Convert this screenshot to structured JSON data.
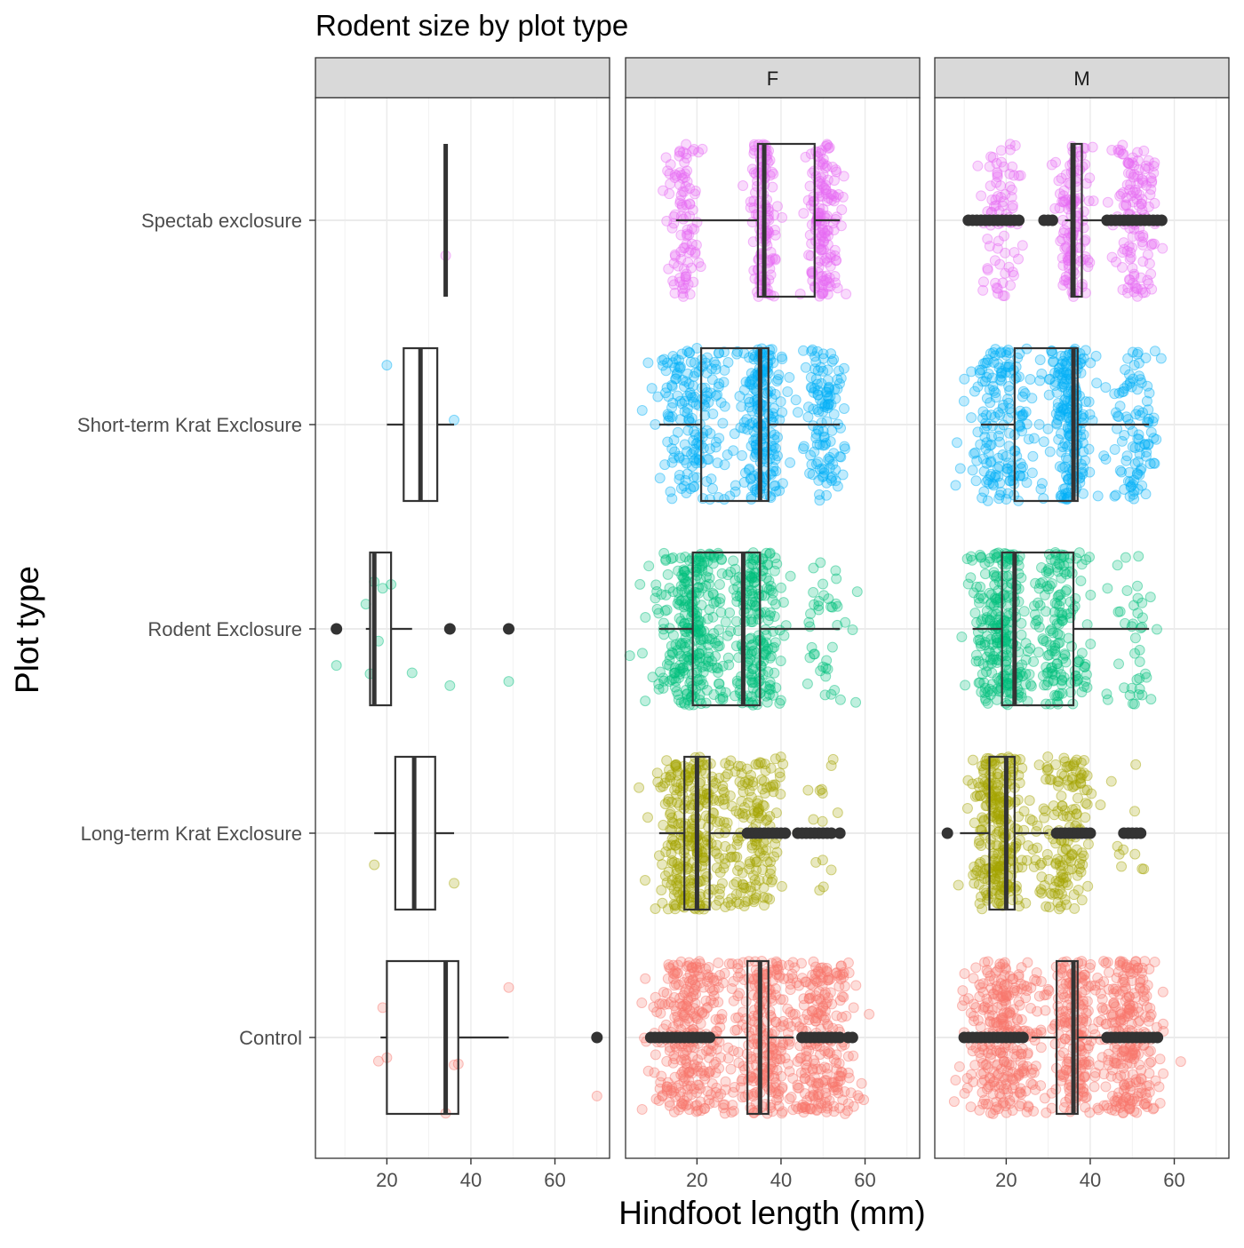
{
  "chart_data": {
    "type": "boxplot",
    "title": "Rodent size by plot type",
    "xlabel": "Hindfoot length (mm)",
    "ylabel": "Plot type",
    "xlim": [
      3,
      73
    ],
    "x_ticks": [
      20,
      40,
      60
    ],
    "grid": true,
    "coord_flip": true,
    "facets": [
      "",
      "F",
      "M"
    ],
    "categories": [
      "Control",
      "Long-term Krat Exclosure",
      "Rodent Exclosure",
      "Short-term Krat Exclosure",
      "Spectab exclosure"
    ],
    "colors": {
      "Control": "#F8766D",
      "Long-term Krat Exclosure": "#A3A500",
      "Rodent Exclosure": "#00BF7D",
      "Short-term Krat Exclosure": "#00B0F6",
      "Spectab exclosure": "#E76BF3"
    },
    "panels": [
      {
        "facet": "",
        "boxes": [
          {
            "category": "Control",
            "min": 18.5,
            "q1": 20,
            "median": 34,
            "q3": 37,
            "max": 49,
            "outliers": [
              70
            ]
          },
          {
            "category": "Long-term Krat Exclosure",
            "min": 17,
            "q1": 22,
            "median": 26.5,
            "q3": 31.5,
            "max": 36,
            "outliers": []
          },
          {
            "category": "Rodent Exclosure",
            "min": 15,
            "q1": 16,
            "median": 17,
            "q3": 21,
            "max": 26,
            "outliers": [
              8,
              35,
              49
            ]
          },
          {
            "category": "Short-term Krat Exclosure",
            "min": 20,
            "q1": 24,
            "median": 28,
            "q3": 32,
            "max": 36,
            "outliers": []
          },
          {
            "category": "Spectab exclosure",
            "min": 34,
            "q1": 34,
            "median": 34,
            "q3": 34,
            "max": 34,
            "outliers": []
          }
        ],
        "jitter": [
          {
            "category": "Control",
            "values": [
              18,
              19,
              20,
              34,
              36,
              37,
              49,
              70
            ]
          },
          {
            "category": "Long-term Krat Exclosure",
            "values": [
              17,
              36
            ]
          },
          {
            "category": "Rodent Exclosure",
            "values": [
              8,
              15,
              16,
              17,
              18,
              19,
              21,
              26,
              35,
              49
            ]
          },
          {
            "category": "Short-term Krat Exclosure",
            "values": [
              20,
              36
            ]
          },
          {
            "category": "Spectab exclosure",
            "values": [
              34
            ]
          }
        ]
      },
      {
        "facet": "F",
        "boxes": [
          {
            "category": "Control",
            "min": 24,
            "q1": 32,
            "median": 35,
            "q3": 37,
            "max": 43,
            "outliers": [
              9,
              10,
              11,
              12,
              13,
              14,
              15,
              16,
              17,
              18,
              19,
              20,
              21,
              22,
              23,
              45,
              46,
              47,
              48,
              49,
              50,
              51,
              52,
              53,
              54,
              56,
              57
            ]
          },
          {
            "category": "Long-term Krat Exclosure",
            "min": 11,
            "q1": 17,
            "median": 20,
            "q3": 23,
            "max": 31,
            "outliers": [
              32,
              33,
              34,
              35,
              36,
              37,
              38,
              39,
              40,
              41,
              44,
              45,
              46,
              47,
              48,
              49,
              50,
              51,
              52,
              54
            ]
          },
          {
            "category": "Rodent Exclosure",
            "min": 11,
            "q1": 19,
            "median": 31,
            "q3": 35,
            "max": 54,
            "outliers": []
          },
          {
            "category": "Short-term Krat Exclosure",
            "min": 11,
            "q1": 21,
            "median": 35,
            "q3": 37,
            "max": 54,
            "outliers": []
          },
          {
            "category": "Spectab exclosure",
            "min": 15,
            "q1": 34.5,
            "median": 36,
            "q3": 48,
            "max": 54,
            "outliers": []
          }
        ],
        "jitter": [
          {
            "category": "Control",
            "clusters": [
              [
                19,
                5,
                320
              ],
              [
                36,
                3,
                220
              ],
              [
                49,
                4,
                260
              ]
            ]
          },
          {
            "category": "Long-term Krat Exclosure",
            "clusters": [
              [
                18,
                3.5,
                260
              ],
              [
                28,
                4,
                80
              ],
              [
                35,
                3,
                110
              ],
              [
                50,
                2.5,
                15
              ]
            ]
          },
          {
            "category": "Rodent Exclosure",
            "clusters": [
              [
                19,
                4,
                300
              ],
              [
                34,
                3,
                200
              ],
              [
                50,
                3,
                40
              ]
            ]
          },
          {
            "category": "Short-term Krat Exclosure",
            "clusters": [
              [
                19,
                4,
                180
              ],
              [
                35,
                2.5,
                200
              ],
              [
                50,
                2.5,
                120
              ]
            ]
          },
          {
            "category": "Spectab exclosure",
            "clusters": [
              [
                17,
                2,
                100
              ],
              [
                36,
                1.5,
                130
              ],
              [
                50,
                2,
                160
              ]
            ]
          }
        ]
      },
      {
        "facet": "M",
        "boxes": [
          {
            "category": "Control",
            "min": 26,
            "q1": 32,
            "median": 36,
            "q3": 37,
            "max": 43,
            "outliers": [
              10,
              11,
              12,
              13,
              14,
              15,
              16,
              17,
              18,
              19,
              20,
              21,
              22,
              23,
              24,
              44,
              45,
              46,
              47,
              48,
              49,
              50,
              51,
              52,
              53,
              54,
              55,
              56
            ]
          },
          {
            "category": "Long-term Krat Exclosure",
            "min": 9,
            "q1": 16,
            "median": 20,
            "q3": 22,
            "max": 30,
            "outliers": [
              6,
              32,
              33,
              34,
              35,
              36,
              37,
              38,
              39,
              40,
              48,
              49,
              50,
              51,
              52
            ]
          },
          {
            "category": "Rodent Exclosure",
            "min": 12,
            "q1": 19,
            "median": 22,
            "q3": 36,
            "max": 54,
            "outliers": []
          },
          {
            "category": "Short-term Krat Exclosure",
            "min": 14,
            "q1": 22,
            "median": 36,
            "q3": 37,
            "max": 54,
            "outliers": []
          },
          {
            "category": "Spectab exclosure",
            "min": 34,
            "q1": 35.5,
            "median": 36,
            "q3": 38,
            "max": 43,
            "outliers": [
              11,
              12,
              13,
              14,
              15,
              16,
              17,
              18,
              19,
              20,
              21,
              22,
              23,
              29,
              30,
              31,
              44,
              45,
              46,
              47,
              48,
              49,
              50,
              51,
              52,
              53,
              54,
              55,
              56,
              57
            ]
          }
        ],
        "jitter": [
          {
            "category": "Control",
            "clusters": [
              [
                19,
                4.5,
                300
              ],
              [
                36,
                3,
                200
              ],
              [
                49,
                3.5,
                260
              ]
            ]
          },
          {
            "category": "Long-term Krat Exclosure",
            "clusters": [
              [
                18,
                3,
                260
              ],
              [
                32,
                3.5,
                100
              ],
              [
                37,
                2,
                60
              ],
              [
                50,
                2.5,
                10
              ]
            ]
          },
          {
            "category": "Rodent Exclosure",
            "clusters": [
              [
                19,
                3.5,
                260
              ],
              [
                33,
                3,
                150
              ],
              [
                50,
                2.5,
                40
              ]
            ]
          },
          {
            "category": "Short-term Krat Exclosure",
            "clusters": [
              [
                19,
                4,
                180
              ],
              [
                35,
                2.5,
                200
              ],
              [
                50,
                3,
                100
              ]
            ]
          },
          {
            "category": "Spectab exclosure",
            "clusters": [
              [
                19,
                2.5,
                80
              ],
              [
                36,
                2,
                120
              ],
              [
                51,
                2.5,
                130
              ]
            ]
          }
        ]
      }
    ]
  }
}
